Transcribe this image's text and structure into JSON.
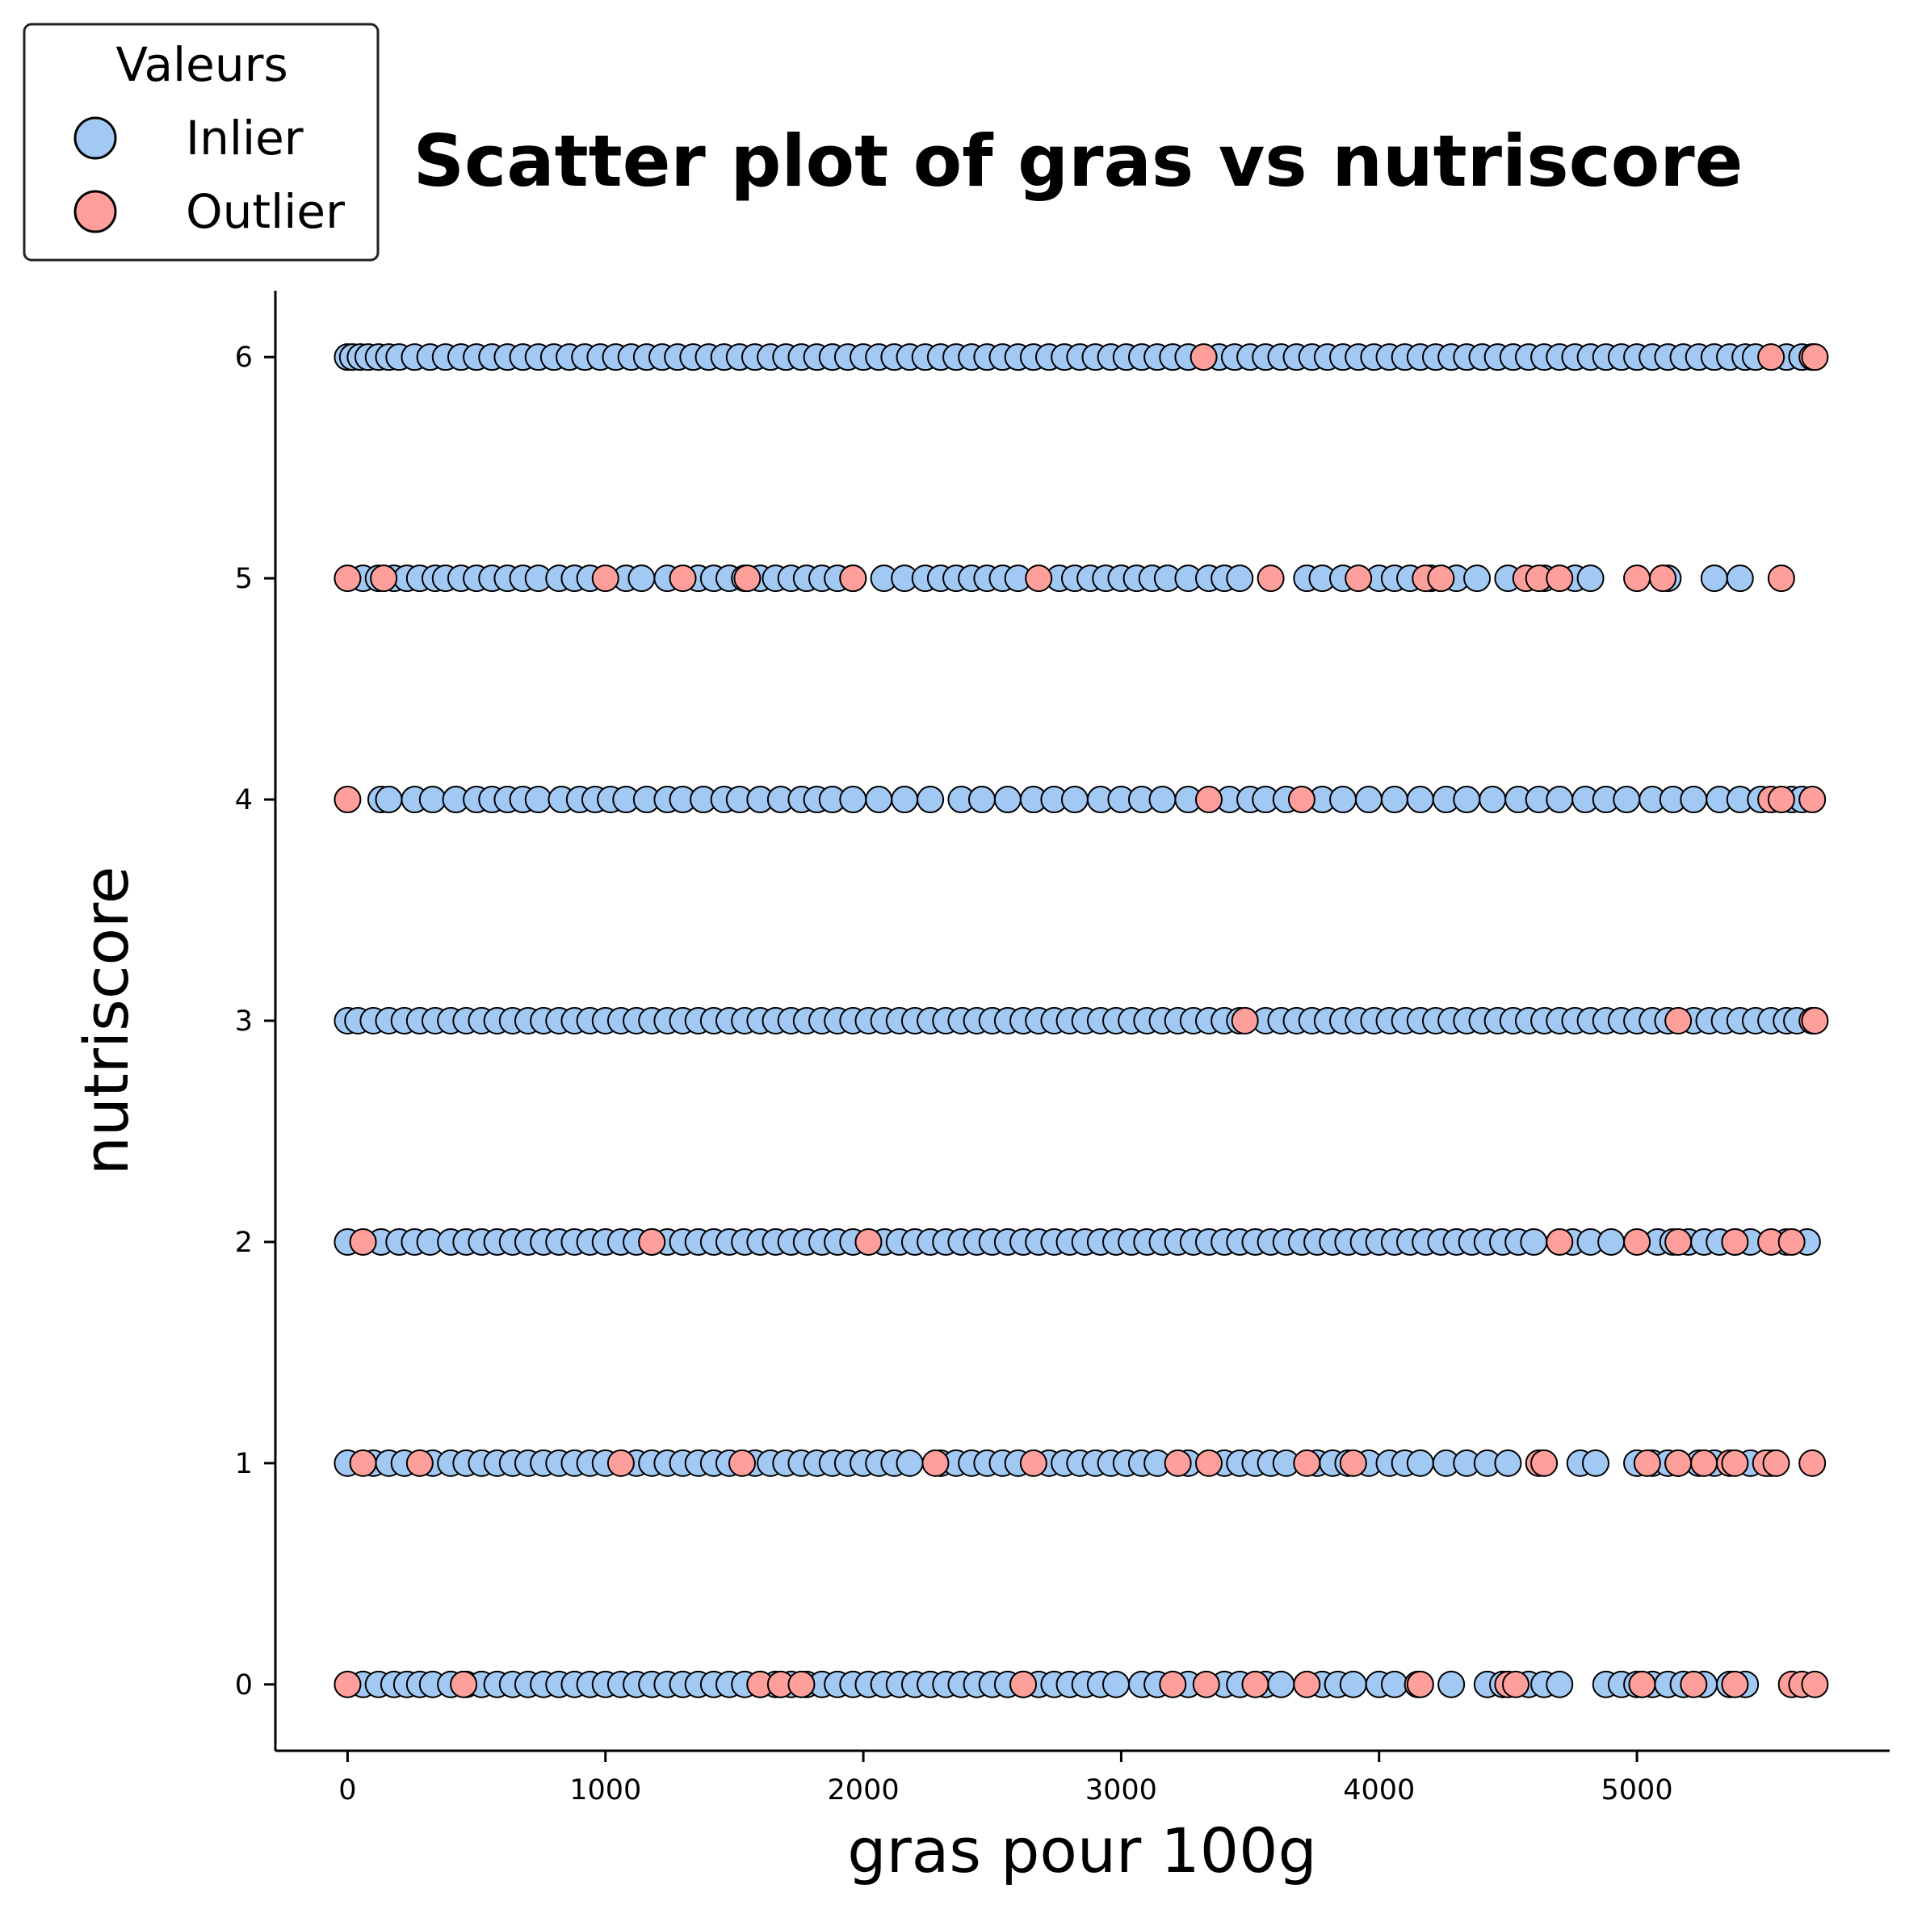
{
  "chart_data": {
    "type": "scatter",
    "title": "Scatter plot of gras vs nutriscore",
    "xlabel": "gras pour 100g",
    "ylabel": "nutriscore",
    "xlim": [
      -280,
      5980
    ],
    "ylim": [
      -0.3,
      6.3
    ],
    "x_ticks": [
      0,
      1000,
      2000,
      3000,
      4000,
      5000
    ],
    "y_ticks": [
      0,
      1,
      2,
      3,
      4,
      5,
      6
    ],
    "x_tick_labels": [
      "0",
      "1000",
      "2000",
      "3000",
      "4000",
      "5000"
    ],
    "y_tick_labels": [
      "0",
      "1",
      "2",
      "3",
      "4",
      "5",
      "6"
    ],
    "grid": false,
    "legend": {
      "title": "Valeurs",
      "placement": "top-left",
      "entries": [
        {
          "label": "Inlier",
          "color": "#a1c9f4"
        },
        {
          "label": "Outlier",
          "color": "#ff9f9b"
        }
      ]
    },
    "colors": {
      "inlier": "#a1c9f4",
      "outlier": "#ff9f9b",
      "edge": "#000000"
    },
    "series": [
      {
        "name": "Inlier",
        "points": [
          {
            "y": 6,
            "x": [
              0,
              20,
              50,
              80,
              120,
              160,
              200,
              260,
              320,
              380,
              440,
              500,
              560,
              620,
              680,
              740,
              800,
              860,
              920,
              980,
              1040,
              1100,
              1160,
              1220,
              1280,
              1340,
              1400,
              1460,
              1520,
              1580,
              1640,
              1700,
              1760,
              1820,
              1880,
              1940,
              2000,
              2060,
              2120,
              2180,
              2240,
              2300,
              2360,
              2420,
              2480,
              2540,
              2600,
              2660,
              2720,
              2780,
              2840,
              2900,
              2960,
              3020,
              3080,
              3140,
              3200,
              3260,
              3380,
              3440,
              3500,
              3560,
              3620,
              3680,
              3740,
              3800,
              3860,
              3920,
              3980,
              4040,
              4100,
              4160,
              4220,
              4280,
              4340,
              4400,
              4460,
              4520,
              4580,
              4640,
              4700,
              4760,
              4820,
              4880,
              4940,
              5000,
              5060,
              5120,
              5180,
              5240,
              5300,
              5360,
              5420,
              5460,
              5580,
              5640
            ]
          },
          {
            "y": 5,
            "x": [
              60,
              120,
              180,
              230,
              280,
              340,
              380,
              440,
              500,
              560,
              620,
              680,
              740,
              820,
              880,
              940,
              1080,
              1140,
              1240,
              1360,
              1420,
              1480,
              1540,
              1600,
              1660,
              1720,
              1780,
              1840,
              1900,
              1960,
              2080,
              2160,
              2240,
              2300,
              2360,
              2420,
              2480,
              2540,
              2600,
              2760,
              2820,
              2880,
              2940,
              3000,
              3060,
              3120,
              3180,
              3260,
              3340,
              3400,
              3460,
              3720,
              3780,
              3860,
              4000,
              4060,
              4120,
              4200,
              4300,
              4380,
              4500,
              4640,
              4760,
              4820,
              5120,
              5300,
              5400
            ]
          },
          {
            "y": 4,
            "x": [
              130,
              160,
              260,
              330,
              420,
              500,
              560,
              620,
              680,
              740,
              830,
              900,
              960,
              1020,
              1080,
              1160,
              1240,
              1300,
              1380,
              1460,
              1520,
              1600,
              1680,
              1760,
              1820,
              1880,
              1960,
              2060,
              2160,
              2260,
              2380,
              2460,
              2560,
              2660,
              2740,
              2820,
              2920,
              3000,
              3080,
              3160,
              3260,
              3420,
              3500,
              3560,
              3640,
              3780,
              3860,
              3960,
              4060,
              4160,
              4260,
              4340,
              4440,
              4540,
              4620,
              4700,
              4800,
              4880,
              4960,
              5060,
              5140,
              5220,
              5320,
              5400,
              5480,
              5600,
              5640
            ]
          },
          {
            "y": 3,
            "x": [
              0,
              40,
              100,
              160,
              220,
              280,
              340,
              400,
              460,
              520,
              580,
              640,
              700,
              760,
              820,
              880,
              940,
              1000,
              1060,
              1120,
              1180,
              1240,
              1300,
              1360,
              1420,
              1480,
              1540,
              1600,
              1660,
              1720,
              1780,
              1840,
              1900,
              1960,
              2020,
              2080,
              2140,
              2200,
              2260,
              2320,
              2380,
              2440,
              2500,
              2560,
              2620,
              2680,
              2740,
              2800,
              2860,
              2920,
              2980,
              3040,
              3100,
              3160,
              3220,
              3280,
              3340,
              3400,
              3460,
              3560,
              3620,
              3680,
              3740,
              3800,
              3860,
              3920,
              3980,
              4040,
              4100,
              4160,
              4220,
              4280,
              4340,
              4400,
              4460,
              4520,
              4580,
              4640,
              4700,
              4760,
              4820,
              4880,
              4940,
              5000,
              5060,
              5120,
              5220,
              5280,
              5340,
              5400,
              5460,
              5520,
              5580,
              5620
            ]
          },
          {
            "y": 2,
            "x": [
              0,
              130,
              200,
              260,
              320,
              400,
              460,
              520,
              580,
              640,
              700,
              760,
              820,
              880,
              940,
              1000,
              1060,
              1120,
              1180,
              1240,
              1300,
              1360,
              1420,
              1480,
              1540,
              1600,
              1660,
              1720,
              1780,
              1840,
              1900,
              1960,
              2080,
              2140,
              2200,
              2260,
              2320,
              2380,
              2440,
              2500,
              2560,
              2620,
              2680,
              2740,
              2800,
              2860,
              2920,
              2980,
              3040,
              3100,
              3160,
              3220,
              3280,
              3340,
              3400,
              3460,
              3520,
              3580,
              3640,
              3700,
              3760,
              3820,
              3880,
              3940,
              4000,
              4060,
              4120,
              4180,
              4240,
              4300,
              4360,
              4420,
              4480,
              4540,
              4600,
              4750,
              4820,
              4900,
              5080,
              5140,
              5200,
              5260,
              5320,
              5380,
              5440,
              5580,
              5660
            ]
          },
          {
            "y": 1,
            "x": [
              0,
              100,
              160,
              220,
              330,
              400,
              460,
              520,
              580,
              640,
              700,
              760,
              820,
              880,
              940,
              1000,
              1120,
              1180,
              1240,
              1300,
              1360,
              1420,
              1480,
              1580,
              1640,
              1700,
              1760,
              1820,
              1880,
              1940,
              2000,
              2060,
              2120,
              2180,
              2300,
              2360,
              2420,
              2480,
              2540,
              2600,
              2720,
              2780,
              2840,
              2900,
              2960,
              3020,
              3080,
              3140,
              3260,
              3400,
              3460,
              3520,
              3580,
              3640,
              3760,
              3820,
              3880,
              3960,
              4040,
              4100,
              4160,
              4260,
              4340,
              4420,
              4500,
              4780,
              4840,
              5000,
              5060,
              5120,
              5160,
              5240,
              5300,
              5440,
              5520
            ]
          },
          {
            "y": 0,
            "x": [
              60,
              120,
              180,
              230,
              280,
              330,
              400,
              460,
              520,
              580,
              640,
              700,
              760,
              820,
              880,
              940,
              1000,
              1060,
              1120,
              1180,
              1240,
              1300,
              1360,
              1420,
              1480,
              1540,
              1600,
              1660,
              1720,
              1780,
              1840,
              1900,
              1960,
              2020,
              2080,
              2140,
              2200,
              2260,
              2320,
              2380,
              2440,
              2500,
              2560,
              2620,
              2680,
              2740,
              2800,
              2860,
              2920,
              2980,
              3080,
              3140,
              3260,
              3400,
              3460,
              3560,
              3620,
              3780,
              3840,
              3900,
              4000,
              4060,
              4280,
              4420,
              4480,
              4580,
              4640,
              4700,
              4880,
              4940,
              5000,
              5060,
              5120,
              5180,
              5260,
              5360,
              5420
            ]
          }
        ]
      },
      {
        "name": "Outlier",
        "points": [
          {
            "y": 6,
            "x": [
              3320,
              5520,
              5680,
              5690
            ]
          },
          {
            "y": 5,
            "x": [
              0,
              140,
              1000,
              1300,
              1550,
              1960,
              2680,
              3580,
              3920,
              4180,
              4240,
              4570,
              4620,
              4700,
              5000,
              5100,
              5560
            ]
          },
          {
            "y": 4,
            "x": [
              0,
              3340,
              3700,
              5520,
              5560,
              5680
            ]
          },
          {
            "y": 3,
            "x": [
              3480,
              5160,
              5680,
              5690
            ]
          },
          {
            "y": 2,
            "x": [
              60,
              1180,
              2020,
              4700,
              5000,
              5160,
              5380,
              5520,
              5600
            ]
          },
          {
            "y": 1,
            "x": [
              60,
              280,
              1060,
              1530,
              2280,
              2660,
              3220,
              3340,
              3720,
              3900,
              4620,
              4640,
              5040,
              5160,
              5260,
              5360,
              5380,
              5500,
              5540,
              5680
            ]
          },
          {
            "y": 0,
            "x": [
              0,
              450,
              1600,
              1680,
              1760,
              2620,
              3200,
              3330,
              3520,
              3720,
              4150,
              4160,
              4500,
              4530,
              5020,
              5220,
              5380,
              5600,
              5640,
              5690
            ]
          }
        ]
      }
    ]
  }
}
